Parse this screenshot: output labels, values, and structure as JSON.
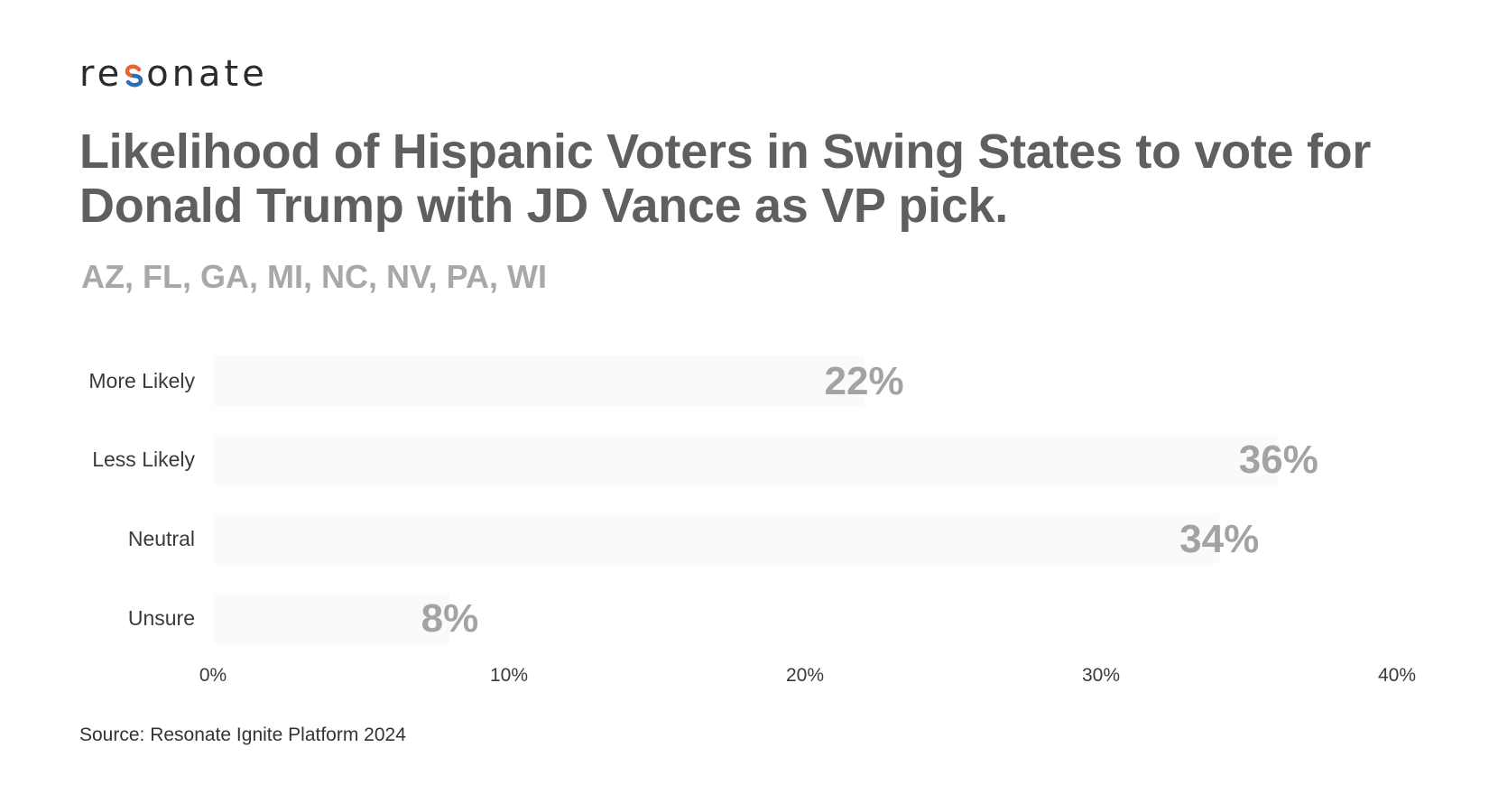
{
  "brand": {
    "name_before": "re",
    "name_mark": "s",
    "name_after": "onate",
    "colors": {
      "orange": "#e8652b",
      "blue": "#2d6fb7"
    }
  },
  "title": "Likelihood of Hispanic Voters in Swing States to vote for Donald Trump with JD Vance as VP pick.",
  "subtitle": "AZ, FL, GA, MI, NC, NV, PA, WI",
  "source": "Source: Resonate Ignite Platform 2024",
  "chart_data": {
    "type": "bar",
    "orientation": "horizontal",
    "categories": [
      "More Likely",
      "Less Likely",
      "Neutral",
      "Unsure"
    ],
    "values": [
      22,
      36,
      34,
      8
    ],
    "value_labels": [
      "22%",
      "36%",
      "34%",
      "8%"
    ],
    "x_ticks": [
      "0%",
      "10%",
      "20%",
      "30%",
      "40%"
    ],
    "xlim": [
      0,
      40
    ],
    "grid": false,
    "colors": {
      "bar": "#fafafa",
      "value_label": "#a3a3a3",
      "category_label": "#3a3a3a",
      "tick_label": "#3a3a3a"
    }
  }
}
